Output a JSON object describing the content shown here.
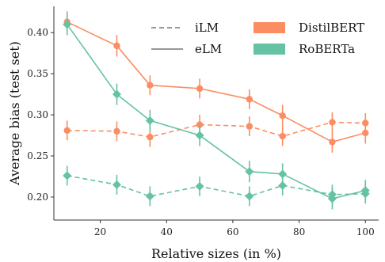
{
  "chart_data": {
    "type": "line",
    "xlabel": "Relative sizes (in %)",
    "ylabel": "Average bias (test set)",
    "xlim": [
      6,
      104
    ],
    "ylim": [
      0.172,
      0.432
    ],
    "xticks": [
      20,
      40,
      60,
      80,
      100
    ],
    "yticks": [
      0.2,
      0.25,
      0.3,
      0.35,
      0.4
    ],
    "ytick_labels": [
      "0.20",
      "0.25",
      "0.30",
      "0.35",
      "0.40"
    ],
    "x": [
      10,
      25,
      35,
      50,
      65,
      75,
      90,
      100
    ],
    "grid": false,
    "legend": {
      "placement": "top-right",
      "line_entries": [
        {
          "label": "iLM",
          "style": "dashed"
        },
        {
          "label": "eLM",
          "style": "solid"
        }
      ],
      "color_entries": [
        {
          "label": "DistilBERT",
          "color": "#fc8d62"
        },
        {
          "label": "RoBERTa",
          "color": "#66c2a5"
        }
      ]
    },
    "series": [
      {
        "model": "DistilBERT",
        "mode": "eLM",
        "style": "solid",
        "color": "#fc8d62",
        "marker": "circle",
        "values": [
          0.413,
          0.384,
          0.336,
          0.332,
          0.319,
          0.299,
          0.267,
          0.278
        ],
        "errors": [
          0.013,
          0.013,
          0.012,
          0.012,
          0.012,
          0.013,
          0.013,
          0.013
        ]
      },
      {
        "model": "DistilBERT",
        "mode": "iLM",
        "style": "dashed",
        "color": "#fc8d62",
        "marker": "circle",
        "values": [
          0.281,
          0.28,
          0.273,
          0.288,
          0.286,
          0.274,
          0.291,
          0.29
        ],
        "errors": [
          0.012,
          0.012,
          0.012,
          0.012,
          0.012,
          0.012,
          0.012,
          0.012
        ]
      },
      {
        "model": "RoBERTa",
        "mode": "eLM",
        "style": "solid",
        "color": "#66c2a5",
        "marker": "diamond",
        "values": [
          0.41,
          0.325,
          0.293,
          0.275,
          0.231,
          0.228,
          0.198,
          0.208
        ],
        "errors": [
          0.013,
          0.013,
          0.013,
          0.013,
          0.013,
          0.013,
          0.013,
          0.013
        ]
      },
      {
        "model": "RoBERTa",
        "mode": "iLM",
        "style": "dashed",
        "color": "#66c2a5",
        "marker": "diamond",
        "values": [
          0.226,
          0.215,
          0.201,
          0.213,
          0.201,
          0.214,
          0.203,
          0.204
        ],
        "errors": [
          0.012,
          0.012,
          0.012,
          0.012,
          0.012,
          0.012,
          0.012,
          0.012
        ]
      }
    ]
  }
}
